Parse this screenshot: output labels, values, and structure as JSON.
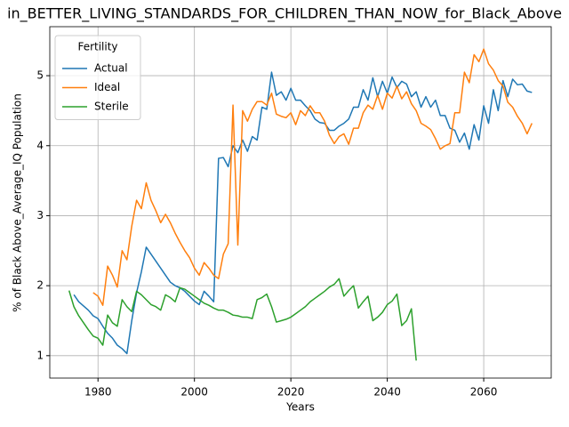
{
  "chart_data": {
    "type": "line",
    "title": "in_BETTER_LIVING_STANDARDS_FOR_CHILDREN_THAN_NOW_for_Black_Above",
    "xlabel": "Years",
    "ylabel": "% of Black Above_Average_IQ Population",
    "legend_title": "Fertility",
    "legend": "upper left",
    "grid": true,
    "xlim": [
      1970,
      2074
    ],
    "ylim": [
      0.68,
      5.7
    ],
    "xticks": [
      1980,
      2000,
      2020,
      2040,
      2060
    ],
    "yticks": [
      1,
      2,
      3,
      4,
      5
    ],
    "x": [
      1974,
      1975,
      1976,
      1977,
      1978,
      1979,
      1980,
      1981,
      1982,
      1983,
      1984,
      1985,
      1986,
      1987,
      1988,
      1989,
      1990,
      1991,
      1992,
      1993,
      1994,
      1995,
      1996,
      1997,
      1998,
      1999,
      2000,
      2001,
      2002,
      2003,
      2004,
      2005,
      2006,
      2007,
      2008,
      2009,
      2010,
      2011,
      2012,
      2013,
      2014,
      2015,
      2016,
      2017,
      2018,
      2019,
      2020,
      2021,
      2022,
      2023,
      2024,
      2025,
      2026,
      2027,
      2028,
      2029,
      2030,
      2031,
      2032,
      2033,
      2034,
      2035,
      2036,
      2037,
      2038,
      2039,
      2040,
      2041,
      2042,
      2043,
      2044,
      2045,
      2046,
      2047,
      2048,
      2049,
      2050,
      2051,
      2052,
      2053,
      2054,
      2055,
      2056,
      2057,
      2058,
      2059,
      2060,
      2061,
      2062,
      2063,
      2064,
      2065,
      2066,
      2067,
      2068,
      2069,
      2070
    ],
    "series": [
      {
        "name": "Actual",
        "color": "#1f77b4",
        "values": [
          null,
          1.87,
          1.77,
          1.71,
          1.65,
          1.57,
          1.53,
          1.42,
          1.32,
          1.25,
          1.15,
          1.1,
          1.03,
          1.5,
          1.9,
          2.2,
          2.55,
          2.45,
          2.35,
          2.25,
          2.15,
          2.05,
          2.0,
          1.97,
          1.92,
          1.85,
          1.78,
          1.73,
          1.92,
          1.85,
          1.77,
          3.82,
          3.83,
          3.7,
          4.0,
          3.9,
          4.08,
          3.92,
          4.13,
          4.08,
          4.55,
          4.52,
          5.05,
          4.72,
          4.77,
          4.65,
          4.82,
          4.65,
          4.65,
          4.57,
          4.5,
          4.38,
          4.33,
          4.32,
          4.22,
          4.22,
          4.28,
          4.32,
          4.38,
          4.55,
          4.55,
          4.8,
          4.65,
          4.97,
          4.7,
          4.92,
          4.75,
          4.98,
          4.83,
          4.92,
          4.88,
          4.7,
          4.77,
          4.55,
          4.7,
          4.55,
          4.65,
          4.43,
          4.43,
          4.25,
          4.22,
          4.05,
          4.18,
          3.95,
          4.3,
          4.08,
          4.57,
          4.32,
          4.8,
          4.5,
          4.93,
          4.7,
          4.95,
          4.87,
          4.88,
          4.78,
          4.76
        ]
      },
      {
        "name": "Ideal",
        "color": "#ff7f0e",
        "values": [
          null,
          null,
          null,
          null,
          null,
          1.9,
          1.85,
          1.72,
          2.28,
          2.15,
          1.98,
          2.5,
          2.37,
          2.85,
          3.22,
          3.1,
          3.47,
          3.22,
          3.07,
          2.9,
          3.02,
          2.9,
          2.75,
          2.62,
          2.5,
          2.4,
          2.25,
          2.15,
          2.33,
          2.25,
          2.15,
          2.1,
          2.45,
          2.6,
          4.58,
          2.58,
          4.5,
          4.35,
          4.52,
          4.63,
          4.63,
          4.58,
          4.75,
          4.45,
          4.42,
          4.4,
          4.47,
          4.3,
          4.5,
          4.43,
          4.57,
          4.47,
          4.47,
          4.35,
          4.15,
          4.03,
          4.13,
          4.17,
          4.02,
          4.25,
          4.25,
          4.47,
          4.58,
          4.52,
          4.72,
          4.52,
          4.75,
          4.68,
          4.85,
          4.67,
          4.77,
          4.6,
          4.5,
          4.32,
          4.28,
          4.23,
          4.1,
          3.95,
          4.0,
          4.03,
          4.47,
          4.47,
          5.05,
          4.9,
          5.3,
          5.2,
          5.38,
          5.17,
          5.08,
          4.93,
          4.85,
          4.62,
          4.55,
          4.42,
          4.32,
          4.17,
          4.32
        ]
      },
      {
        "name": "Sterile",
        "color": "#2ca02c",
        "values": [
          1.93,
          1.7,
          1.57,
          1.47,
          1.37,
          1.28,
          1.25,
          1.15,
          1.58,
          1.47,
          1.42,
          1.8,
          1.7,
          1.63,
          1.92,
          1.87,
          1.8,
          1.73,
          1.7,
          1.65,
          1.87,
          1.83,
          1.77,
          1.97,
          1.95,
          1.9,
          1.85,
          1.8,
          1.75,
          1.72,
          1.68,
          1.65,
          1.65,
          1.62,
          1.58,
          1.57,
          1.55,
          1.55,
          1.53,
          1.8,
          1.83,
          1.88,
          1.7,
          1.48,
          1.5,
          1.52,
          1.55,
          1.6,
          1.65,
          1.7,
          1.77,
          1.82,
          1.87,
          1.92,
          1.98,
          2.02,
          2.1,
          1.85,
          1.93,
          2.0,
          1.68,
          1.77,
          1.85,
          1.5,
          1.55,
          1.62,
          1.73,
          1.78,
          1.88,
          1.43,
          1.5,
          1.67,
          0.93,
          null,
          null,
          null,
          null,
          null,
          null,
          null,
          null,
          null,
          null,
          null,
          null,
          null,
          null,
          null,
          null,
          null,
          null,
          null,
          null,
          null,
          null,
          null,
          null
        ]
      }
    ]
  }
}
